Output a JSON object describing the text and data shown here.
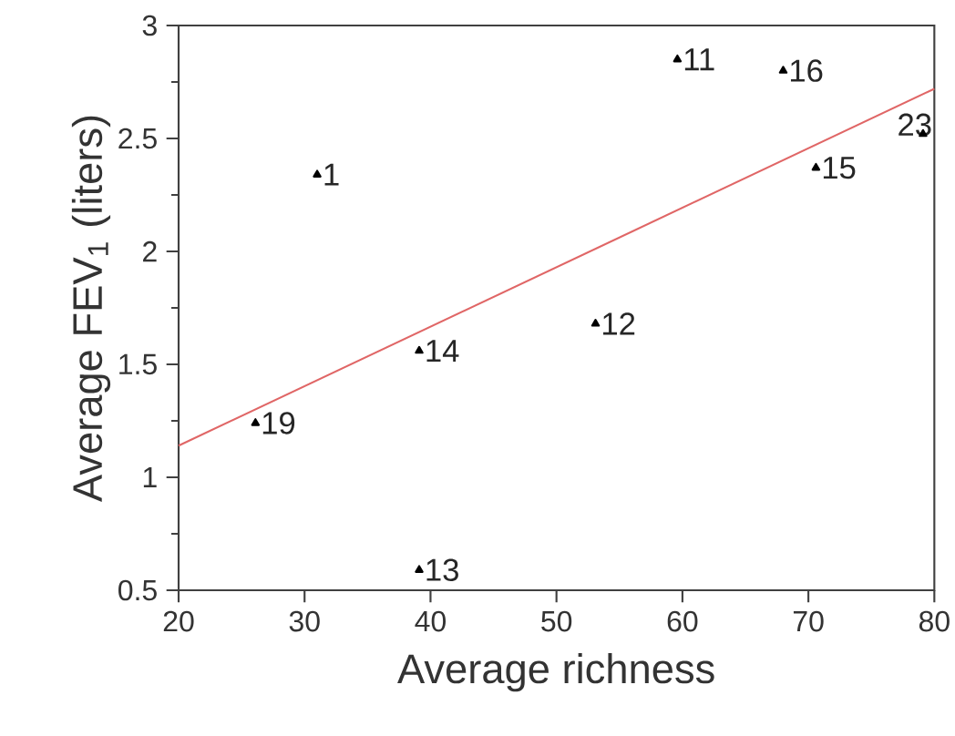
{
  "chart_data": {
    "type": "scatter",
    "xlabel": "Average richness",
    "ylabel": "Average FEV$_{1}$ (liters)",
    "xlim": [
      20,
      80
    ],
    "ylim": [
      0.5,
      3
    ],
    "xticks": [
      20,
      30,
      40,
      50,
      60,
      70,
      80
    ],
    "yticks": [
      0.5,
      1,
      1.5,
      2,
      2.5,
      3
    ],
    "marker": "triangle",
    "series": [
      {
        "color": "#000000",
        "x": [
          31,
          59.6,
          68,
          79.1,
          70.6,
          39.1,
          53.1,
          26.1,
          39.1
        ],
        "values": [
          2.34,
          2.85,
          2.8,
          2.52,
          2.37,
          1.56,
          1.68,
          1.24,
          0.59
        ]
      },
      {
        "type": "line",
        "color": "#e06666",
        "marker": "none",
        "line_style": "solid",
        "x": [
          20,
          80
        ],
        "values": [
          1.14,
          2.72
        ]
      }
    ],
    "annotations": [
      {
        "text": "1",
        "x": 31,
        "y": 2.34
      },
      {
        "text": "11",
        "x": 59.6,
        "y": 2.85
      },
      {
        "text": "16",
        "x": 68,
        "y": 2.8
      },
      {
        "text": "23",
        "x": 79.1,
        "y": 2.52
      },
      {
        "text": "15",
        "x": 70.6,
        "y": 2.37
      },
      {
        "text": "14",
        "x": 39.1,
        "y": 1.56
      },
      {
        "text": "12",
        "x": 53.1,
        "y": 1.68
      },
      {
        "text": "19",
        "x": 26.1,
        "y": 1.24
      },
      {
        "text": "13",
        "x": 39.1,
        "y": 0.59
      }
    ]
  }
}
